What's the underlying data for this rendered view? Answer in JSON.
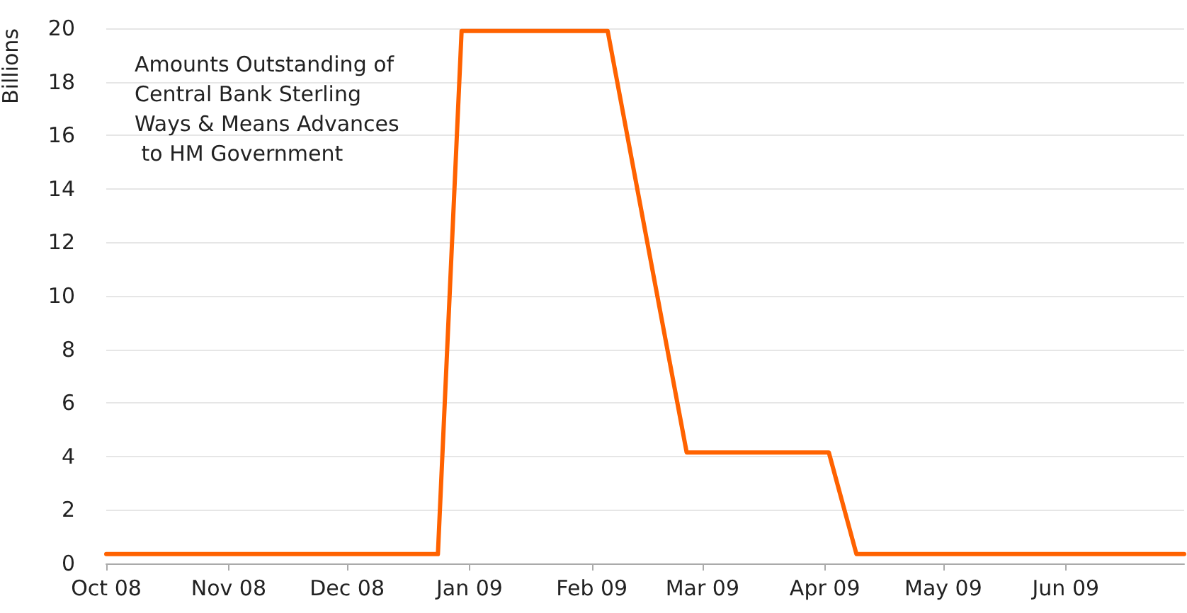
{
  "chart_data": {
    "type": "line",
    "title": "Amounts Outstanding of Central Bank Sterling Ways & Means Advances to HM Government",
    "ylabel": "Billions",
    "x": [
      "2008-10-01",
      "2008-12-24",
      "2008-12-30",
      "2009-02-05",
      "2009-02-25",
      "2009-04-02",
      "2009-04-09",
      "2009-07-01"
    ],
    "series": [
      {
        "color": "#ff6200",
        "values": [
          0.35,
          0.35,
          19.9,
          19.9,
          4.15,
          4.15,
          0.35,
          0.35
        ]
      }
    ],
    "xlim": [
      "2008-10-01",
      "2009-07-01"
    ],
    "xticks": [
      {
        "value": "2008-10-01",
        "label": "Oct 08"
      },
      {
        "value": "2008-11-01",
        "label": "Nov 08"
      },
      {
        "value": "2008-12-01",
        "label": "Dec 08"
      },
      {
        "value": "2009-01-01",
        "label": "Jan 09"
      },
      {
        "value": "2009-02-01",
        "label": "Feb 09"
      },
      {
        "value": "2009-03-01",
        "label": "Mar 09"
      },
      {
        "value": "2009-04-01",
        "label": "Apr 09"
      },
      {
        "value": "2009-05-01",
        "label": "May 09"
      },
      {
        "value": "2009-06-01",
        "label": "Jun 09"
      }
    ],
    "ylim": [
      0,
      20
    ],
    "yticks": [
      0,
      2,
      4,
      6,
      8,
      10,
      12,
      14,
      16,
      18,
      20
    ],
    "grid": "y",
    "marker": "none",
    "line_style": "solid"
  }
}
